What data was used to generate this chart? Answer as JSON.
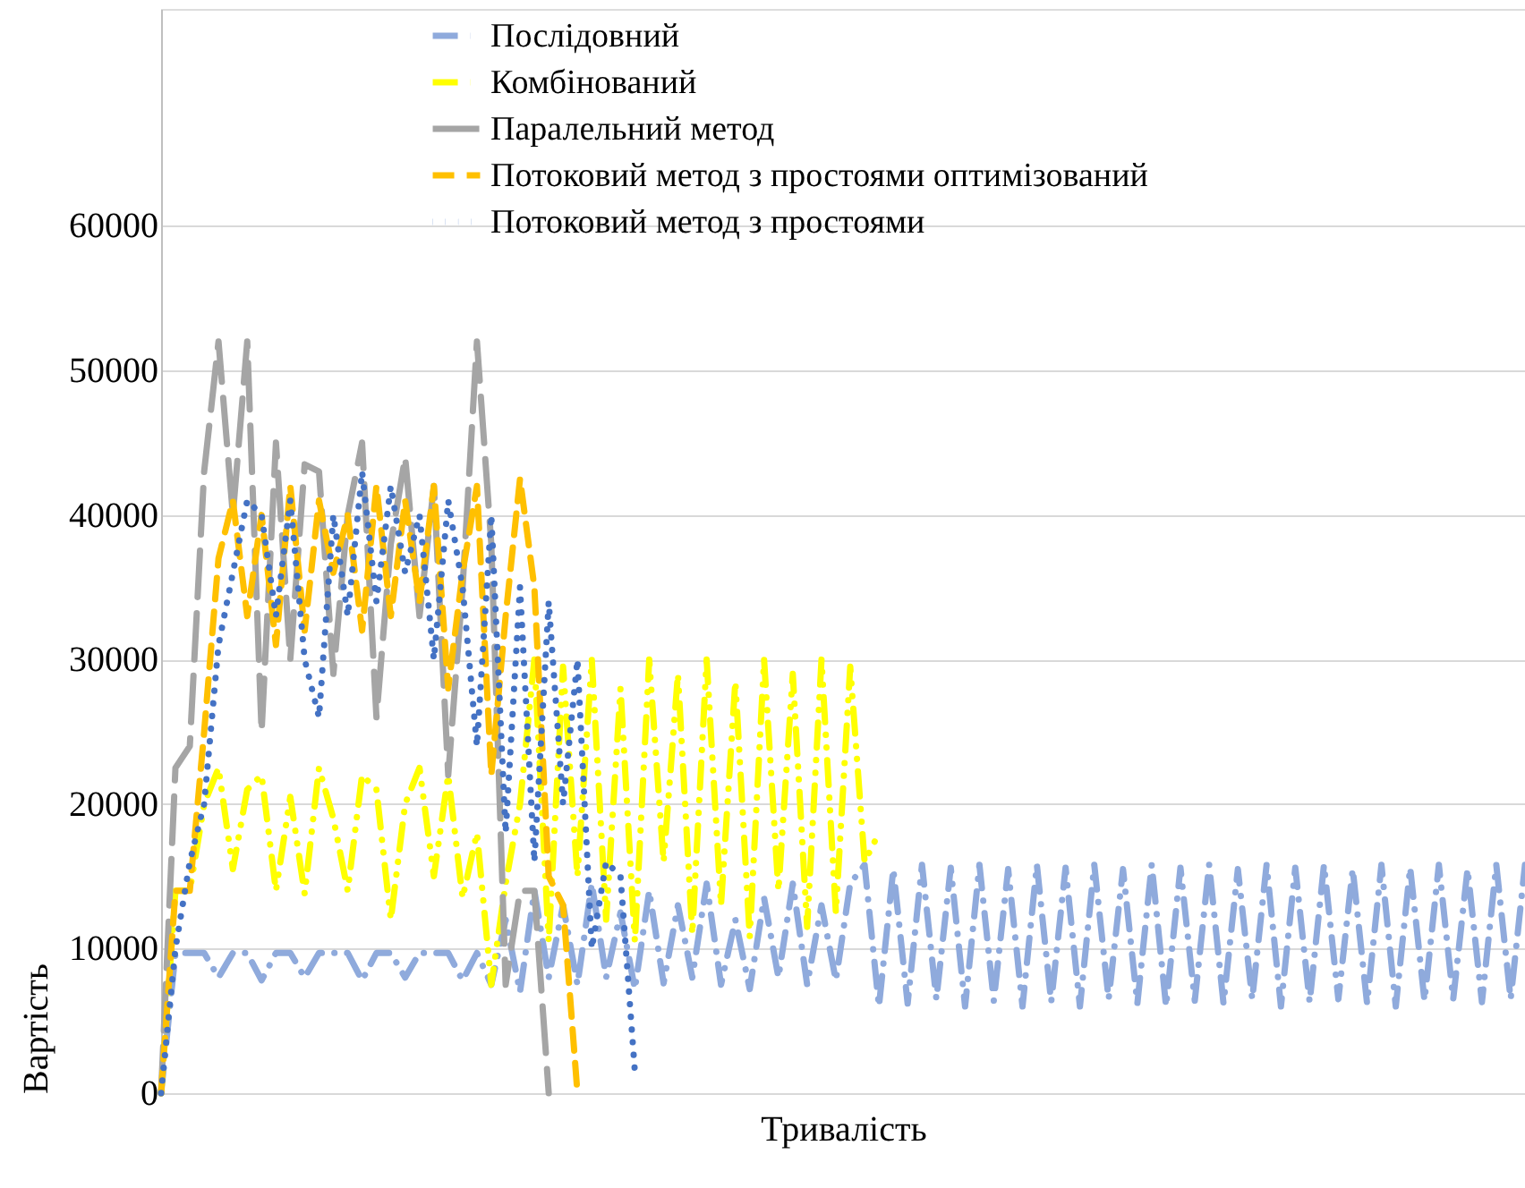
{
  "chart_data": {
    "type": "line",
    "xlabel": "Тривалість",
    "ylabel": "Вартість",
    "categories": [
      null,
      null,
      null,
      null,
      null,
      null,
      null,
      null,
      null,
      null,
      null,
      null,
      null,
      null,
      null,
      null,
      null,
      null,
      null,
      null,
      null,
      null,
      null,
      null,
      null,
      null,
      null,
      null,
      null,
      null,
      null,
      null,
      null,
      null,
      null,
      null,
      null,
      null,
      null,
      null,
      null,
      null,
      null,
      null,
      null,
      null,
      null,
      null,
      null,
      null,
      null,
      null,
      null,
      null,
      null,
      null,
      null,
      null,
      null,
      null,
      null,
      null,
      null,
      null,
      null,
      null,
      null,
      null,
      null,
      null,
      null,
      null,
      null,
      null,
      null,
      null,
      null,
      null,
      null,
      null,
      null,
      null,
      null,
      null,
      null,
      null,
      null,
      null,
      null,
      null,
      null,
      null,
      null,
      null,
      null,
      null
    ],
    "ylim": [
      0,
      75000
    ],
    "yticks": [
      0,
      10000,
      20000,
      30000,
      40000,
      50000,
      60000
    ],
    "grid": "y",
    "legend": "top",
    "tick_labels": "y",
    "series": [
      {
        "name": "Послідовний",
        "color": "#8faadc",
        "line_style": "dashdot",
        "values": [
          0,
          9700,
          9700,
          9700,
          8000,
          9700,
          9700,
          7800,
          9700,
          9700,
          8000,
          9700,
          9700,
          9700,
          7800,
          9700,
          9700,
          8000,
          9700,
          9700,
          9700,
          7800,
          9700,
          7500,
          12000,
          7000,
          14000,
          8000,
          13000,
          7500,
          14500,
          8000,
          12500,
          7200,
          14000,
          7600,
          13000,
          8000,
          14500,
          7500,
          12000,
          7200,
          13500,
          8000,
          14500,
          7500,
          13000,
          7800,
          14500,
          15800,
          6000,
          15500,
          6200,
          15800,
          6500,
          15600,
          6000,
          15800,
          6400,
          15500,
          6000,
          15800,
          6300,
          15600,
          6000,
          15800,
          6500,
          15500,
          6200,
          15800,
          6000,
          15600,
          6400,
          15800,
          6200,
          15500,
          6500,
          15800,
          6000,
          15600,
          6300,
          15800,
          6500,
          15500,
          6200,
          15800,
          6000,
          15600,
          6400,
          15800,
          6500,
          15500,
          6300,
          15800,
          6500,
          15800
        ]
      },
      {
        "name": "Комбінований",
        "color": "#ffff00",
        "line_style": "dashdotdot",
        "values": [
          0,
          14000,
          14000,
          20000,
          22500,
          15500,
          21000,
          22000,
          14000,
          20500,
          13800,
          22500,
          19000,
          14000,
          22000,
          21000,
          12000,
          20000,
          22500,
          15000,
          22000,
          13500,
          18000,
          7500,
          14500,
          20000,
          30000,
          10500,
          29500,
          15000,
          30000,
          12000,
          28000,
          10500,
          30000,
          16000,
          29000,
          11000,
          30000,
          13000,
          28500,
          10800,
          30000,
          14000,
          29000,
          11500,
          30000,
          12500,
          29500,
          16000,
          18000,
          null,
          null,
          null,
          null,
          null,
          null,
          null,
          null,
          null,
          null,
          null,
          null,
          null,
          null,
          null,
          null,
          null,
          null,
          null,
          null,
          null,
          null,
          null,
          null,
          null,
          null,
          null,
          null,
          null,
          null,
          null,
          null,
          null,
          null,
          null,
          null,
          null,
          null,
          null,
          null,
          null,
          null,
          null,
          null,
          null
        ]
      },
      {
        "name": "Паралельний метод",
        "color": "#a5a5a5",
        "line_style": "longdash",
        "values": [
          0,
          22500,
          24000,
          43000,
          52000,
          40000,
          52000,
          25000,
          45000,
          30000,
          43500,
          43000,
          29000,
          40000,
          45000,
          26000,
          38000,
          44000,
          33000,
          42000,
          22000,
          35000,
          52000,
          38000,
          7500,
          14000,
          14000,
          0,
          null,
          null,
          null,
          null,
          null,
          null,
          null,
          null,
          null,
          null,
          null,
          null,
          null,
          null,
          null,
          null,
          null,
          null,
          null,
          null,
          null,
          null,
          null,
          null,
          null,
          null,
          null,
          null,
          null,
          null,
          null,
          null,
          null,
          null,
          null,
          null,
          null,
          null,
          null,
          null,
          null,
          null,
          null,
          null,
          null,
          null,
          null,
          null,
          null,
          null,
          null,
          null,
          null,
          null,
          null,
          null,
          null,
          null,
          null,
          null,
          null,
          null,
          null,
          null,
          null,
          null,
          null,
          null
        ]
      },
      {
        "name": "Потоковий метод з простоями оптимізований",
        "color": "#ffc000",
        "line_style": "dashed",
        "values": [
          0,
          14000,
          14000,
          25000,
          37000,
          41000,
          33000,
          40000,
          31000,
          42000,
          32000,
          41000,
          36000,
          40000,
          32000,
          42000,
          33000,
          41000,
          34000,
          42000,
          28000,
          36000,
          42000,
          22000,
          33000,
          42500,
          35000,
          15000,
          13000,
          0,
          null,
          null,
          null,
          null,
          null,
          null,
          null,
          null,
          null,
          null,
          null,
          null,
          null,
          null,
          null,
          null,
          null,
          null,
          null,
          null,
          null,
          null,
          null,
          null,
          null,
          null,
          null,
          null,
          null,
          null,
          null,
          null,
          null,
          null,
          null,
          null,
          null,
          null,
          null,
          null,
          null,
          null,
          null,
          null,
          null,
          null,
          null,
          null,
          null,
          null,
          null,
          null,
          null,
          null,
          null,
          null,
          null,
          null,
          null,
          null,
          null,
          null,
          null,
          null,
          null,
          null
        ]
      },
      {
        "name": "Потоковий метод з простоями",
        "color": "#4472c4",
        "line_style": "dotted",
        "values": [
          0,
          10000,
          16000,
          20000,
          31000,
          36000,
          41000,
          40000,
          33000,
          41000,
          30000,
          26000,
          40000,
          33000,
          43000,
          34000,
          42000,
          36000,
          40000,
          30000,
          41000,
          35000,
          24000,
          40000,
          18000,
          35000,
          16000,
          34000,
          20000,
          30000,
          10000,
          16000,
          15000,
          1500,
          null,
          null,
          null,
          null,
          null,
          null,
          null,
          null,
          null,
          null,
          null,
          null,
          null,
          null,
          null,
          null,
          null,
          null,
          null,
          null,
          null,
          null,
          null,
          null,
          null,
          null,
          null,
          null,
          null,
          null,
          null,
          null,
          null,
          null,
          null,
          null,
          null,
          null,
          null,
          null,
          null,
          null,
          null,
          null,
          null,
          null,
          null,
          null,
          null,
          null,
          null,
          null,
          null,
          null,
          null,
          null,
          null,
          null,
          null,
          null,
          null,
          null
        ]
      }
    ]
  }
}
